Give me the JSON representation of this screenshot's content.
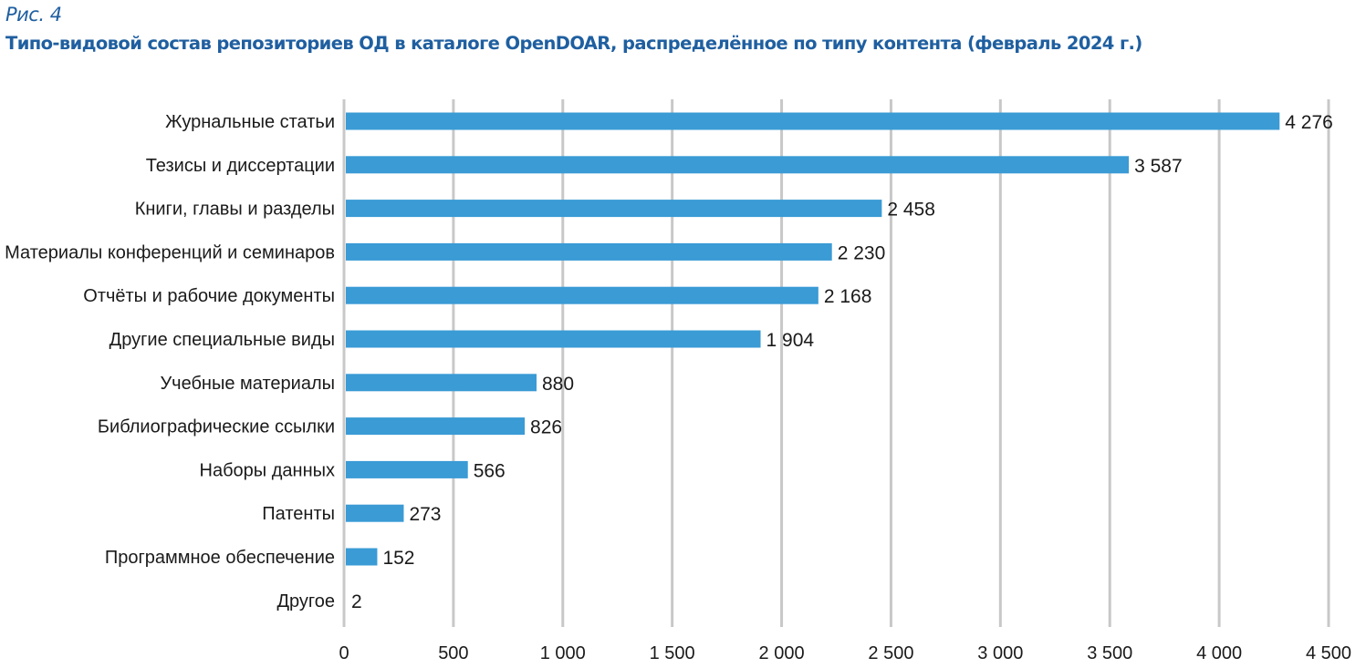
{
  "figure": {
    "number": "Рис. 4",
    "title": "Типо-видовой состав репозиториев ОД в каталоге OpenDOAR, распределённое по типу контента (февраль 2024 г.)"
  },
  "colors": {
    "bar": "#3a9bd5",
    "grid": "#c8c8c8",
    "title": "#1f5fa0"
  },
  "chart_data": {
    "type": "bar",
    "orientation": "horizontal",
    "title": "Типо-видовой состав репозиториев ОД в каталоге OpenDOAR, распределённое по типу контента (февраль 2024 г.)",
    "xlabel": "",
    "ylabel": "",
    "xlim": [
      0,
      4500
    ],
    "grid": true,
    "legend": "none",
    "categories": [
      "Журнальные статьи",
      "Тезисы и диссертации",
      "Книги, главы и разделы",
      "Материалы конференций и семинаров",
      "Отчёты и рабочие документы",
      "Другие специальные виды",
      "Учебные материалы",
      "Библиографические ссылки",
      "Наборы данных",
      "Патенты",
      "Программное обеспечение",
      "Другое"
    ],
    "values": [
      4276,
      3587,
      2458,
      2230,
      2168,
      1904,
      880,
      826,
      566,
      273,
      152,
      2
    ],
    "value_labels": [
      "4 276",
      "3 587",
      "2 458",
      "2 230",
      "2 168",
      "1 904",
      "880",
      "826",
      "566",
      "273",
      "152",
      "2"
    ],
    "x_ticks": [
      0,
      500,
      1000,
      1500,
      2000,
      2500,
      3000,
      3500,
      4000,
      4500
    ],
    "x_tick_labels": [
      "0",
      "500",
      "1 000",
      "1 500",
      "2 000",
      "2 500",
      "3 000",
      "3 500",
      "4 000",
      "4 500"
    ]
  }
}
